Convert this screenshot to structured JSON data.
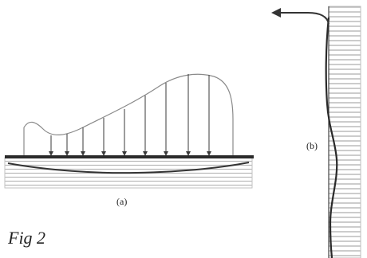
{
  "figure": {
    "caption": "Fig 2",
    "panel_a_label": "(a)",
    "panel_b_label": "(b)"
  },
  "colors": {
    "ink": "#2a2a2a",
    "soil_hatch": "#b8b8b8",
    "load_curve": "#8a8a8a"
  }
}
